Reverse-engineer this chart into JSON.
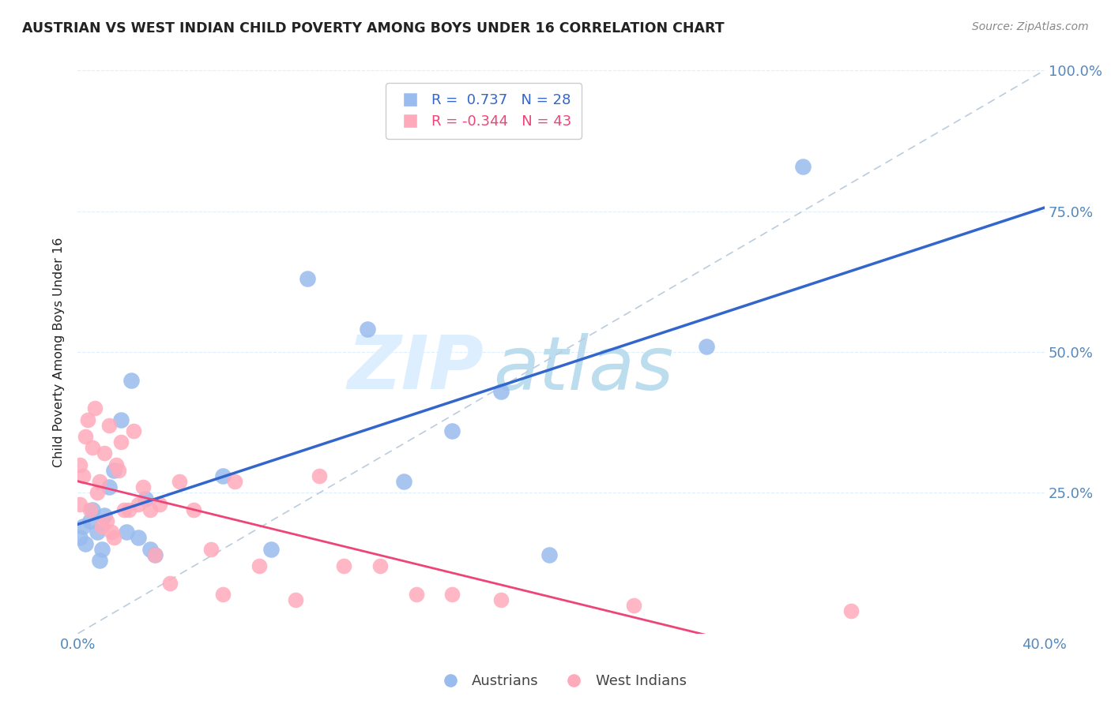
{
  "title": "AUSTRIAN VS WEST INDIAN CHILD POVERTY AMONG BOYS UNDER 16 CORRELATION CHART",
  "source": "Source: ZipAtlas.com",
  "ylabel": "Child Poverty Among Boys Under 16",
  "legend_austrians": "Austrians",
  "legend_west_indians": "West Indians",
  "R_austrians": "0.737",
  "N_austrians": 28,
  "R_west_indians": "-0.344",
  "N_west_indians": 43,
  "xlim": [
    0.0,
    0.4
  ],
  "ylim": [
    0.0,
    1.0
  ],
  "background_color": "#ffffff",
  "blue_color": "#99bbee",
  "pink_color": "#ffaabb",
  "blue_line_color": "#3366cc",
  "pink_line_color": "#ee4477",
  "dashed_line_color": "#bbccdd",
  "grid_color": "#ddeeff",
  "text_color": "#222222",
  "axis_color": "#5588bb",
  "watermark_zip_color": "#ddeeff",
  "watermark_atlas_color": "#bbddee",
  "austrians_x": [
    0.001,
    0.002,
    0.003,
    0.005,
    0.006,
    0.008,
    0.009,
    0.01,
    0.011,
    0.013,
    0.015,
    0.018,
    0.02,
    0.022,
    0.025,
    0.028,
    0.03,
    0.032,
    0.06,
    0.08,
    0.095,
    0.12,
    0.135,
    0.155,
    0.175,
    0.195,
    0.26,
    0.3
  ],
  "austrians_y": [
    0.17,
    0.19,
    0.16,
    0.2,
    0.22,
    0.18,
    0.13,
    0.15,
    0.21,
    0.26,
    0.29,
    0.38,
    0.18,
    0.45,
    0.17,
    0.24,
    0.15,
    0.14,
    0.28,
    0.15,
    0.63,
    0.54,
    0.27,
    0.36,
    0.43,
    0.14,
    0.51,
    0.83
  ],
  "west_indians_x": [
    0.001,
    0.001,
    0.002,
    0.003,
    0.004,
    0.005,
    0.006,
    0.007,
    0.008,
    0.009,
    0.01,
    0.011,
    0.012,
    0.013,
    0.014,
    0.015,
    0.016,
    0.017,
    0.018,
    0.019,
    0.021,
    0.023,
    0.025,
    0.027,
    0.03,
    0.032,
    0.034,
    0.038,
    0.042,
    0.048,
    0.055,
    0.06,
    0.065,
    0.075,
    0.09,
    0.1,
    0.11,
    0.125,
    0.14,
    0.155,
    0.175,
    0.23,
    0.32
  ],
  "west_indians_y": [
    0.23,
    0.3,
    0.28,
    0.35,
    0.38,
    0.22,
    0.33,
    0.4,
    0.25,
    0.27,
    0.19,
    0.32,
    0.2,
    0.37,
    0.18,
    0.17,
    0.3,
    0.29,
    0.34,
    0.22,
    0.22,
    0.36,
    0.23,
    0.26,
    0.22,
    0.14,
    0.23,
    0.09,
    0.27,
    0.22,
    0.15,
    0.07,
    0.27,
    0.12,
    0.06,
    0.28,
    0.12,
    0.12,
    0.07,
    0.07,
    0.06,
    0.05,
    0.04
  ]
}
